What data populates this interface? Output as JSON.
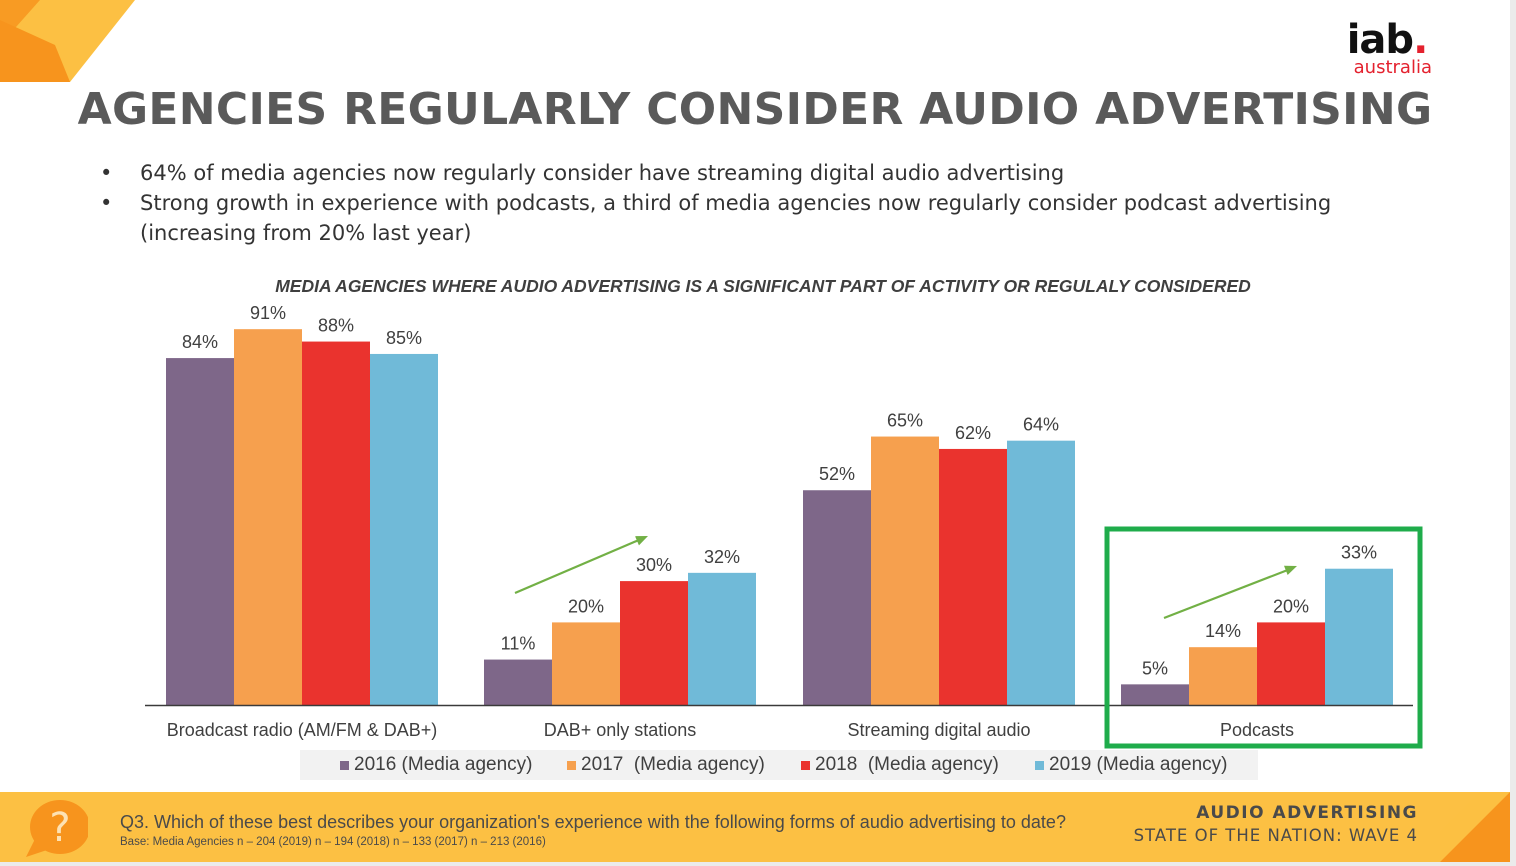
{
  "slide": {
    "title": "AGENCIES REGULARLY CONSIDER AUDIO ADVERTISING",
    "logo": {
      "main": "iab",
      "dot": ".",
      "sub": "australia"
    },
    "bullets": [
      "64% of media agencies now regularly consider have streaming digital audio advertising",
      "Strong growth in experience with podcasts, a third of media agencies now regularly consider podcast advertising (increasing from 20% last year)"
    ],
    "footer": {
      "question": "Q3. Which of these best describes your organization's experience with the following forms of audio advertising to date?",
      "base": "Base: Media Agencies n – 204 (2019) n – 194 (2018) n – 133 (2017) n – 213 (2016)",
      "brand_line1": "AUDIO ADVERTISING",
      "brand_line2": "STATE OF THE NATION: WAVE 4",
      "help_icon": "question-mark-bubble-icon"
    },
    "colors": {
      "accent_orange": "#f7941d",
      "accent_yellow": "#fcc043",
      "highlight_green": "#1fac4b",
      "trend_arrow": "#72b045"
    }
  },
  "chart_data": {
    "type": "bar",
    "title": "MEDIA AGENCIES WHERE AUDIO ADVERTISING IS A SIGNIFICANT PART OF ACTIVITY OR REGULALY CONSIDERED",
    "categories": [
      "Broadcast radio (AM/FM & DAB+)",
      "DAB+ only stations",
      "Streaming digital audio",
      "Podcasts"
    ],
    "series": [
      {
        "name": "2016 (Media agency)",
        "values": [
          84,
          11,
          52,
          5
        ],
        "labels": [
          "84%",
          "11%",
          "52%",
          "5%"
        ],
        "color": "#7e6789"
      },
      {
        "name": "2017  (Media agency)",
        "values": [
          91,
          20,
          65,
          14
        ],
        "labels": [
          "91%",
          "20%",
          "65%",
          "14%"
        ],
        "color": "#f6a04e"
      },
      {
        "name": "2018  (Media agency)",
        "values": [
          88,
          30,
          62,
          20
        ],
        "labels": [
          "88%",
          "30%",
          "62%",
          "20%"
        ],
        "color": "#ea332e"
      },
      {
        "name": "2019 (Media agency)",
        "values": [
          85,
          32,
          64,
          33
        ],
        "labels": [
          "85%",
          "32%",
          "64%",
          "33%"
        ],
        "color": "#70bad8"
      }
    ],
    "ylim": [
      0,
      100
    ],
    "legend_position": "bottom",
    "grid": false,
    "highlighted_category": "Podcasts",
    "trend_arrows_on": [
      "DAB+ only stations",
      "Podcasts"
    ]
  }
}
